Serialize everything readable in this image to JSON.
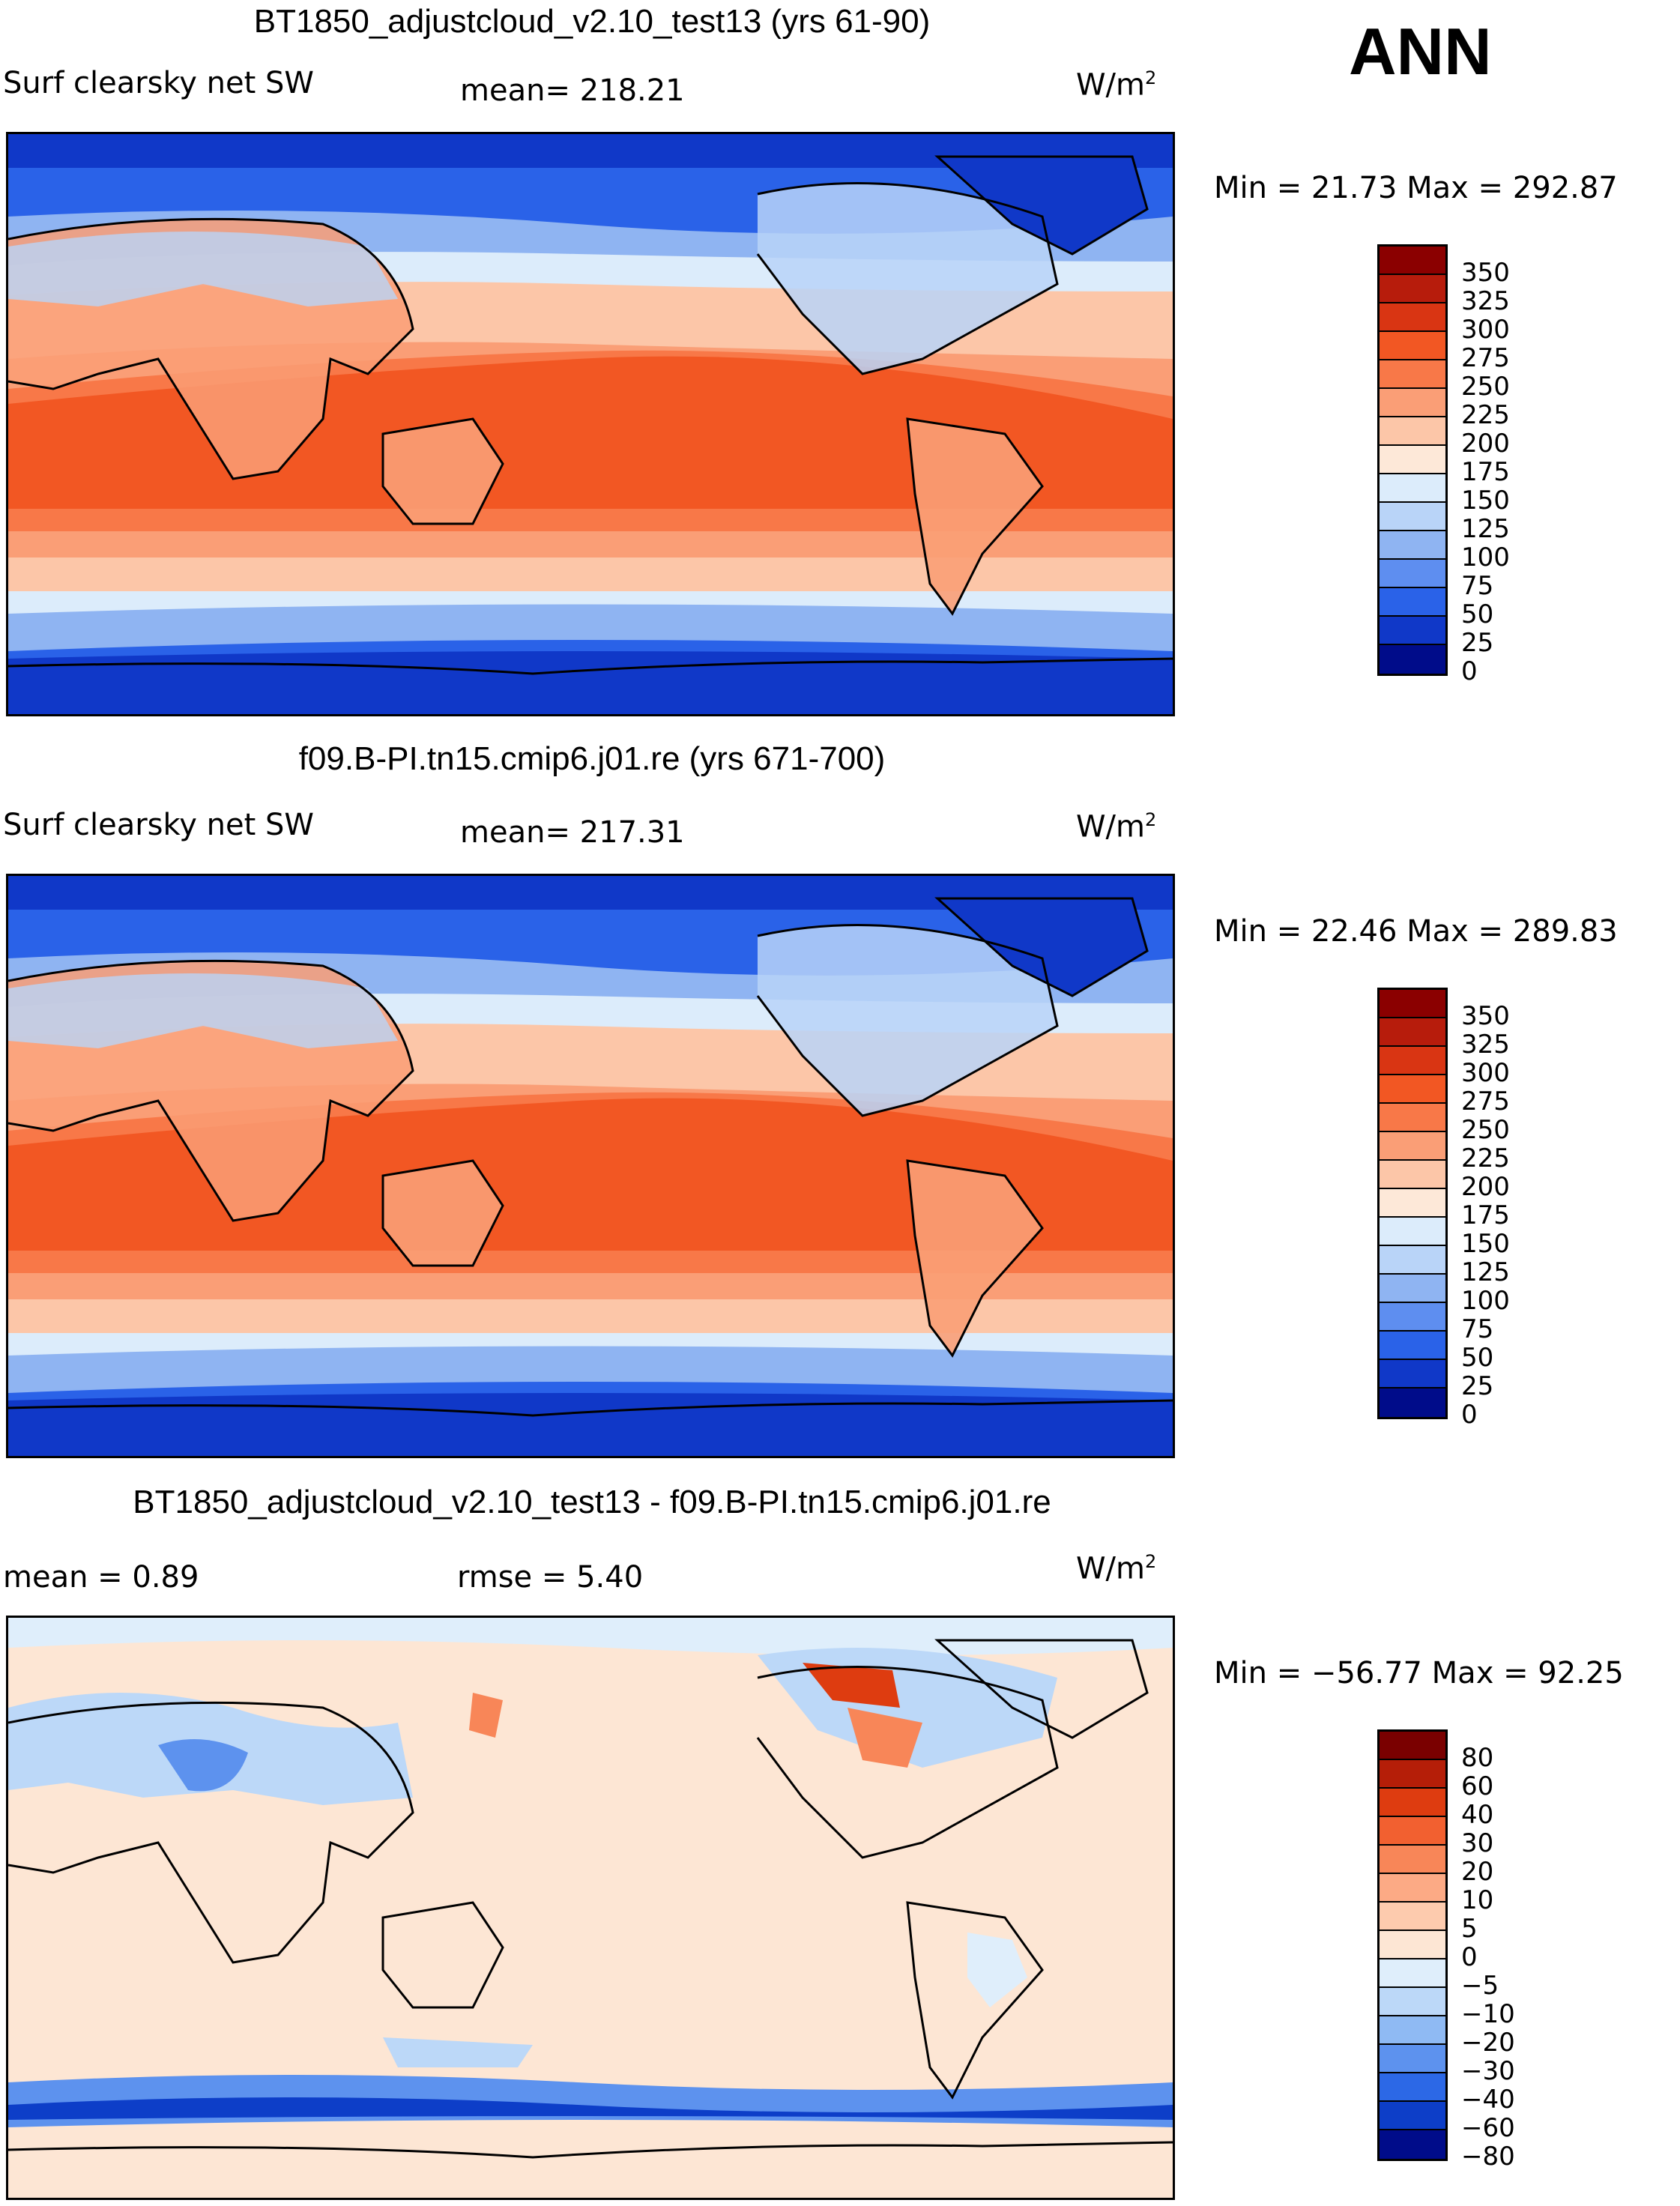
{
  "season": "ANN",
  "panels": [
    {
      "title": "BT1850_adjustcloud_v2.10_test13 (yrs 61-90)",
      "variable": "Surf clearsky net SW",
      "stat": "mean= 218.21",
      "units_base": "W/m",
      "units_exp": "2",
      "minmax": "Min =   21.73 Max = 292.87",
      "colorbar": {
        "labels": [
          "350",
          "325",
          "300",
          "275",
          "250",
          "225",
          "200",
          "175",
          "150",
          "125",
          "100",
          "75",
          "50",
          "25",
          "0"
        ],
        "colors": [
          "#8b0000",
          "#b71c0c",
          "#d93513",
          "#f25723",
          "#f87848",
          "#fa9e76",
          "#fcc6a8",
          "#fde8d8",
          "#dcecfb",
          "#b9d4f8",
          "#8fb4f2",
          "#5e8ef0",
          "#2a62e8",
          "#1038c8",
          "#000c8a"
        ]
      },
      "chart_data": {
        "type": "map",
        "projection": "cylindrical equidistant, centered on Pacific",
        "field": "Surf clearsky net SW",
        "units": "W/m2",
        "mean": 218.21,
        "min": 21.73,
        "max": 292.87,
        "levels": [
          0,
          25,
          50,
          75,
          100,
          125,
          150,
          175,
          200,
          225,
          250,
          275,
          300,
          325,
          350
        ]
      }
    },
    {
      "title": "f09.B-PI.tn15.cmip6.j01.re (yrs 671-700)",
      "variable": "Surf clearsky net SW",
      "stat": "mean= 217.31",
      "units_base": "W/m",
      "units_exp": "2",
      "minmax": "Min =   22.46 Max = 289.83",
      "colorbar": {
        "labels": [
          "350",
          "325",
          "300",
          "275",
          "250",
          "225",
          "200",
          "175",
          "150",
          "125",
          "100",
          "75",
          "50",
          "25",
          "0"
        ],
        "colors": [
          "#8b0000",
          "#b71c0c",
          "#d93513",
          "#f25723",
          "#f87848",
          "#fa9e76",
          "#fcc6a8",
          "#fde8d8",
          "#dcecfb",
          "#b9d4f8",
          "#8fb4f2",
          "#5e8ef0",
          "#2a62e8",
          "#1038c8",
          "#000c8a"
        ]
      },
      "chart_data": {
        "type": "map",
        "projection": "cylindrical equidistant, centered on Pacific",
        "field": "Surf clearsky net SW",
        "units": "W/m2",
        "mean": 217.31,
        "min": 22.46,
        "max": 289.83,
        "levels": [
          0,
          25,
          50,
          75,
          100,
          125,
          150,
          175,
          200,
          225,
          250,
          275,
          300,
          325,
          350
        ]
      }
    },
    {
      "title": "BT1850_adjustcloud_v2.10_test13 - f09.B-PI.tn15.cmip6.j01.re",
      "stat_left": "mean =     0.89",
      "stat_right": "rmse =     5.40",
      "units_base": "W/m",
      "units_exp": "2",
      "minmax": "Min = −56.77 Max =   92.25",
      "colorbar": {
        "labels": [
          "80",
          "60",
          "40",
          "30",
          "20",
          "10",
          "5",
          "0",
          "−5",
          "−10",
          "−20",
          "−30",
          "−40",
          "−60",
          "−80"
        ],
        "colors": [
          "#7a0000",
          "#b51e08",
          "#de3c10",
          "#f26030",
          "#f88658",
          "#fcaa85",
          "#fdcbae",
          "#fde6d4",
          "#dfeefb",
          "#bcd8f8",
          "#8fbaf3",
          "#5d92ee",
          "#2c68e6",
          "#0d3ec8",
          "#000c8a"
        ]
      },
      "chart_data": {
        "type": "map",
        "projection": "cylindrical equidistant, centered on Pacific",
        "field": "difference of Surf clearsky net SW",
        "units": "W/m2",
        "mean": 0.89,
        "rmse": 5.4,
        "min": -56.77,
        "max": 92.25,
        "levels": [
          -80,
          -60,
          -40,
          -30,
          -20,
          -10,
          -5,
          0,
          5,
          10,
          20,
          30,
          40,
          60,
          80
        ]
      }
    }
  ]
}
